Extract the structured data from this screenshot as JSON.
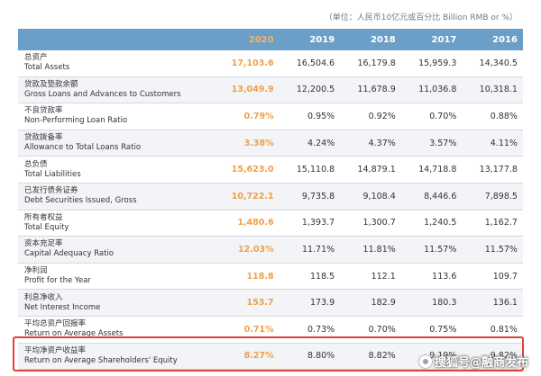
{
  "unit_note": "（单位：人民币10亿元或百分比 Billion RMB or %）",
  "header": {
    "years": [
      "2020",
      "2019",
      "2018",
      "2017",
      "2016"
    ]
  },
  "rows": [
    {
      "zh": "总资产",
      "en": "Total Assets",
      "values": [
        "17,103.6",
        "16,504.6",
        "16,179.8",
        "15,959.3",
        "14,340.5"
      ]
    },
    {
      "zh": "贷款及垫款余额",
      "en": "Gross Loans and Advances to Customers",
      "values": [
        "13,049.9",
        "12,200.5",
        "11,678.9",
        "11,036.8",
        "10,318.1"
      ]
    },
    {
      "zh": "不良贷款率",
      "en": "Non-Performing Loan Ratio",
      "values": [
        "0.79%",
        "0.95%",
        "0.92%",
        "0.70%",
        "0.88%"
      ]
    },
    {
      "zh": "贷款拨备率",
      "en": "Allowance to Total Loans Ratio",
      "values": [
        "3.38%",
        "4.24%",
        "4.37%",
        "3.57%",
        "4.11%"
      ]
    },
    {
      "zh": "总负债",
      "en": "Total Liabilities",
      "values": [
        "15,623.0",
        "15,110.8",
        "14,879.1",
        "14,718.8",
        "13,177.8"
      ]
    },
    {
      "zh": "已发行债务证券",
      "en": "Debt Securities Issued, Gross",
      "values": [
        "10,722.1",
        "9,735.8",
        "9,108.4",
        "8,446.6",
        "7,898.5"
      ]
    },
    {
      "zh": "所有者权益",
      "en": "Total Equity",
      "values": [
        "1,480.6",
        "1,393.7",
        "1,300.7",
        "1,240.5",
        "1,162.7"
      ]
    },
    {
      "zh": "资本充足率",
      "en": "Capital Adequacy Ratio",
      "values": [
        "12.03%",
        "11.71%",
        "11.81%",
        "11.57%",
        "11.57%"
      ]
    },
    {
      "zh": "净利润",
      "en": "Profit for the Year",
      "values": [
        "118.8",
        "118.5",
        "112.1",
        "113.6",
        "109.7"
      ]
    },
    {
      "zh": "利息净收入",
      "en": "Net Interest Income",
      "values": [
        "153.7",
        "173.9",
        "182.9",
        "180.3",
        "136.1"
      ]
    },
    {
      "zh": "平均总资产回报率",
      "en": "Return on Average Assets",
      "values": [
        "0.71%",
        "0.73%",
        "0.70%",
        "0.75%",
        "0.81%"
      ]
    },
    {
      "zh": "平均净资产收益率",
      "en": "Return on Average Shareholders' Equity",
      "values": [
        "8.27%",
        "8.80%",
        "8.82%",
        "9.19%",
        "9.82%"
      ]
    }
  ],
  "watermark": {
    "text": "搜狐号@融商发布"
  }
}
